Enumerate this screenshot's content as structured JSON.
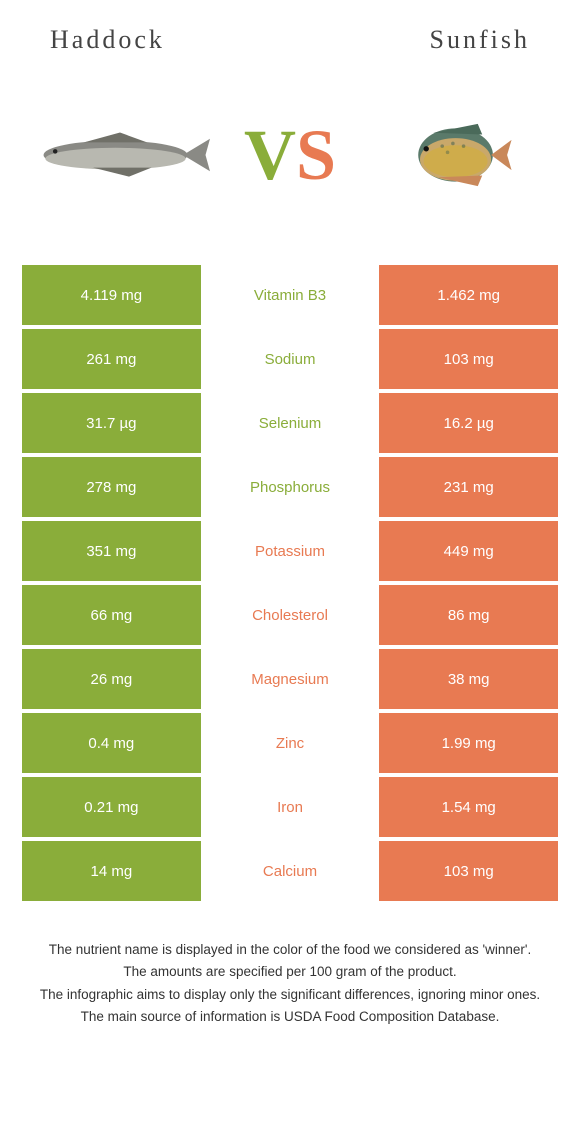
{
  "header": {
    "left_title": "Haddock",
    "right_title": "Sunfish"
  },
  "vs": {
    "v": "V",
    "s": "S"
  },
  "colors": {
    "green": "#8aad3a",
    "orange": "#e87a52"
  },
  "rows": [
    {
      "left": "4.119 mg",
      "label": "Vitamin B3",
      "right": "1.462 mg",
      "winner": "left"
    },
    {
      "left": "261 mg",
      "label": "Sodium",
      "right": "103 mg",
      "winner": "left"
    },
    {
      "left": "31.7 µg",
      "label": "Selenium",
      "right": "16.2 µg",
      "winner": "left"
    },
    {
      "left": "278 mg",
      "label": "Phosphorus",
      "right": "231 mg",
      "winner": "left"
    },
    {
      "left": "351 mg",
      "label": "Potassium",
      "right": "449 mg",
      "winner": "right"
    },
    {
      "left": "66 mg",
      "label": "Cholesterol",
      "right": "86 mg",
      "winner": "right"
    },
    {
      "left": "26 mg",
      "label": "Magnesium",
      "right": "38 mg",
      "winner": "right"
    },
    {
      "left": "0.4 mg",
      "label": "Zinc",
      "right": "1.99 mg",
      "winner": "right"
    },
    {
      "left": "0.21 mg",
      "label": "Iron",
      "right": "1.54 mg",
      "winner": "right"
    },
    {
      "left": "14 mg",
      "label": "Calcium",
      "right": "103 mg",
      "winner": "right"
    }
  ],
  "footer": {
    "line1": "The nutrient name is displayed in the color of the food we considered as 'winner'.",
    "line2": "The amounts are specified per 100 gram of the product.",
    "line3": "The infographic aims to display only the significant differences, ignoring minor ones.",
    "line4": "The main source of information is USDA Food Composition Database."
  }
}
